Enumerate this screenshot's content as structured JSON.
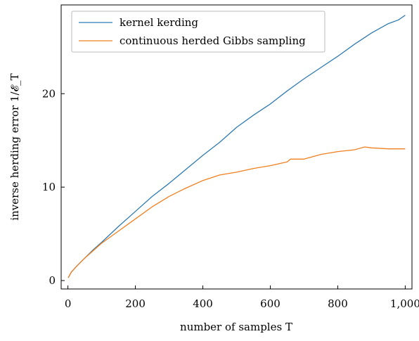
{
  "chart_data": {
    "type": "line",
    "xlabel": "number of samples T",
    "ylabel": "inverse herding error 1/𝓔_T",
    "xlim": [
      -20,
      1020
    ],
    "ylim": [
      -0.9,
      29.5
    ],
    "xticks": [
      0,
      200,
      400,
      600,
      800,
      1000
    ],
    "xtick_labels": [
      "0",
      "200",
      "400",
      "600",
      "800",
      "1,000"
    ],
    "yticks": [
      0,
      10,
      20
    ],
    "ytick_labels": [
      "0",
      "10",
      "20"
    ],
    "grid": false,
    "legend": "top-left",
    "series": [
      {
        "name": "kernel kerding",
        "color": "#2f7ab0",
        "x": [
          1,
          10,
          25,
          50,
          75,
          100,
          150,
          200,
          250,
          300,
          350,
          400,
          450,
          500,
          550,
          600,
          650,
          700,
          750,
          800,
          850,
          900,
          950,
          980,
          1000
        ],
        "y": [
          0.3,
          0.9,
          1.5,
          2.4,
          3.3,
          4.1,
          5.8,
          7.4,
          9.0,
          10.4,
          11.9,
          13.4,
          14.8,
          16.4,
          17.7,
          18.9,
          20.3,
          21.6,
          22.8,
          24.0,
          25.3,
          26.5,
          27.5,
          27.9,
          28.4
        ]
      },
      {
        "name": "continuous herded Gibbs sampling",
        "color": "#f07f1e",
        "x": [
          1,
          10,
          25,
          50,
          75,
          100,
          150,
          200,
          250,
          300,
          350,
          400,
          450,
          500,
          550,
          600,
          650,
          660,
          700,
          750,
          800,
          850,
          880,
          900,
          950,
          1000
        ],
        "y": [
          0.3,
          0.9,
          1.5,
          2.4,
          3.2,
          4.0,
          5.3,
          6.6,
          7.9,
          9.0,
          9.9,
          10.7,
          11.3,
          11.6,
          12.0,
          12.3,
          12.7,
          13.0,
          13.0,
          13.5,
          13.8,
          14.0,
          14.3,
          14.2,
          14.1,
          14.1
        ]
      }
    ]
  }
}
